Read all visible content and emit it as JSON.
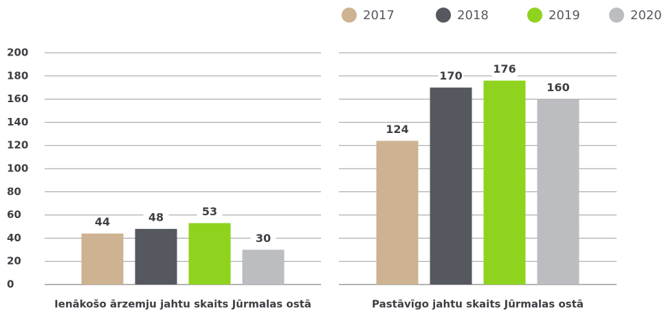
{
  "chart_data": {
    "type": "bar",
    "categories": [
      "Ienākošo ārzemju jahtu skaits Jūrmalas ostā",
      "Pastāvīgo jahtu skaits Jūrmalas ostā"
    ],
    "series": [
      {
        "name": "2017",
        "color": "#cdb391",
        "values": [
          44,
          124
        ]
      },
      {
        "name": "2018",
        "color": "#55585f",
        "values": [
          48,
          170
        ]
      },
      {
        "name": "2019",
        "color": "#8fd31f",
        "values": [
          53,
          176
        ]
      },
      {
        "name": "2020",
        "color": "#bcbdc0",
        "values": [
          30,
          160
        ]
      }
    ],
    "ylim": [
      0,
      200
    ],
    "yticks": [
      0,
      20,
      40,
      60,
      80,
      100,
      120,
      140,
      160,
      180,
      200
    ],
    "grid": true,
    "legend": "top-right"
  }
}
